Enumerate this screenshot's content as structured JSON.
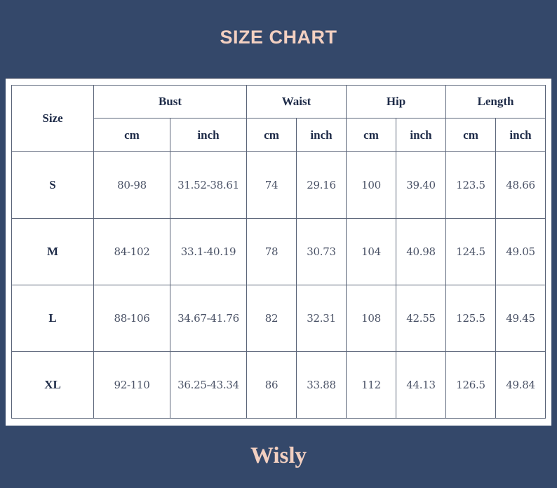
{
  "title": "SIZE CHART",
  "brand": "Wisly",
  "colors": {
    "background": "#34486a",
    "accent": "#f3d0c1"
  },
  "table": {
    "size_header": "Size",
    "groups": [
      "Bust",
      "Waist",
      "Hip",
      "Length"
    ],
    "units": [
      "cm",
      "inch",
      "cm",
      "inch",
      "cm",
      "inch",
      "cm",
      "inch"
    ],
    "rows": [
      {
        "size": "S",
        "values": [
          "80-98",
          "31.52-38.61",
          "74",
          "29.16",
          "100",
          "39.40",
          "123.5",
          "48.66"
        ]
      },
      {
        "size": "M",
        "values": [
          "84-102",
          "33.1-40.19",
          "78",
          "30.73",
          "104",
          "40.98",
          "124.5",
          "49.05"
        ]
      },
      {
        "size": "L",
        "values": [
          "88-106",
          "34.67-41.76",
          "82",
          "32.31",
          "108",
          "42.55",
          "125.5",
          "49.45"
        ]
      },
      {
        "size": "XL",
        "values": [
          "92-110",
          "36.25-43.34",
          "86",
          "33.88",
          "112",
          "44.13",
          "126.5",
          "49.84"
        ]
      }
    ]
  }
}
